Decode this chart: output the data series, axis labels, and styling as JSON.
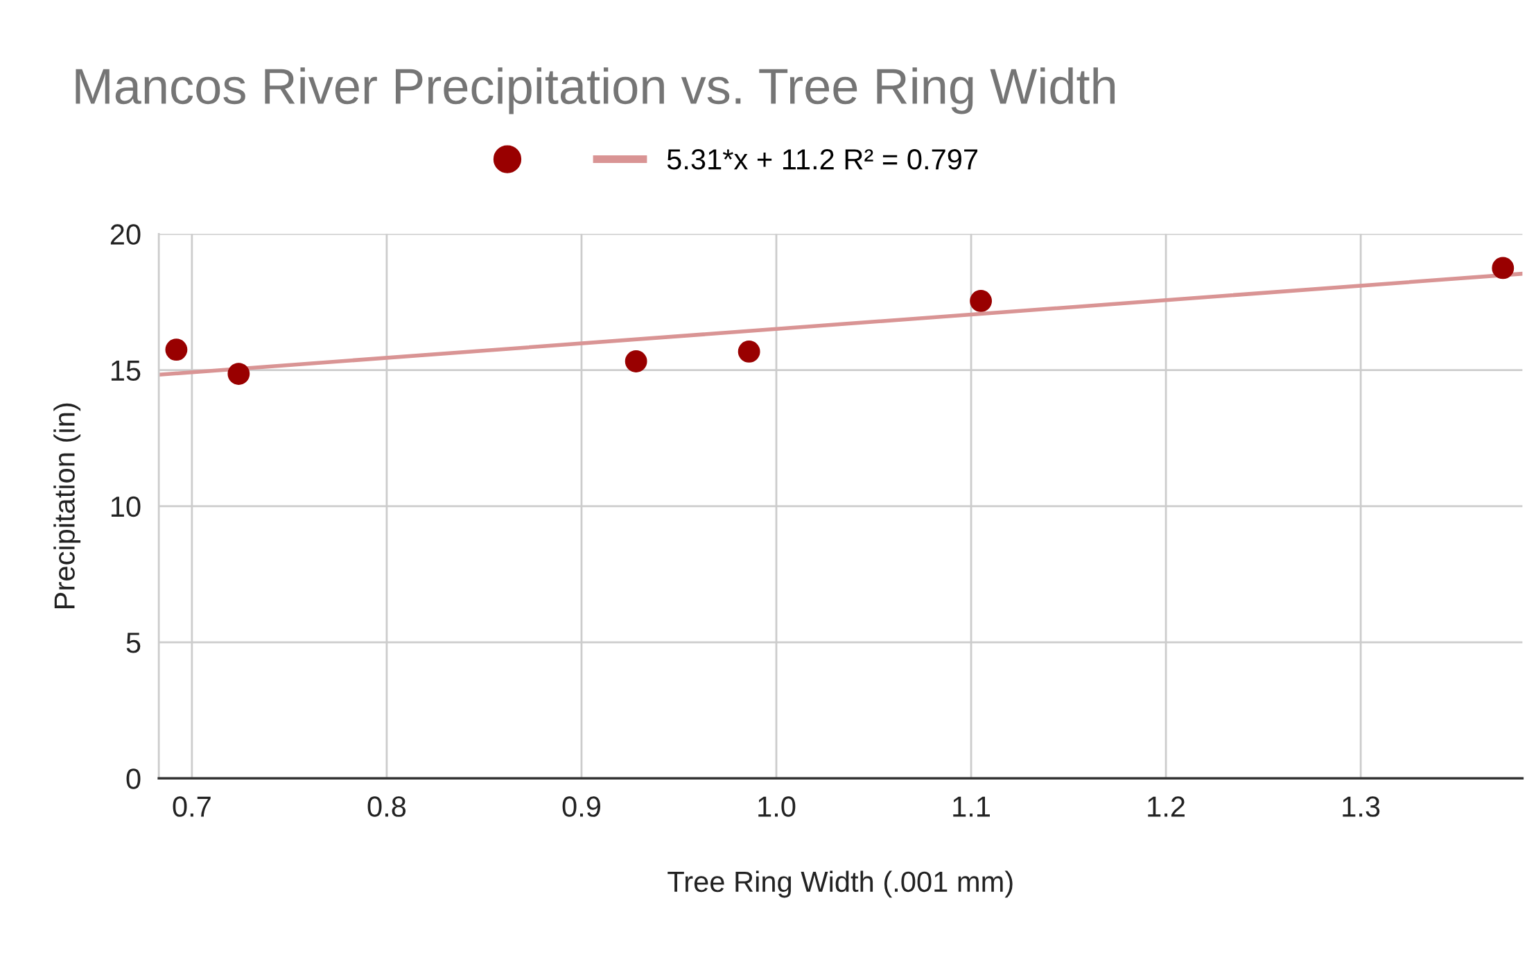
{
  "chart_data": {
    "type": "scatter",
    "title": "Mancos River Precipitation vs. Tree Ring Width",
    "xlabel": "Tree Ring Width (.001 mm)",
    "ylabel": "Precipitation (in)",
    "series": [
      {
        "marker": "circle",
        "color": "#990000",
        "x": [
          0.692,
          0.724,
          0.928,
          0.986,
          1.105,
          1.373
        ],
        "values": [
          15.75,
          14.86,
          15.32,
          15.68,
          17.54,
          18.75
        ]
      },
      {
        "type": "line",
        "name": "5.31*x + 11.2 R² = 0.797",
        "color": "#d99494",
        "x": [
          0.683,
          1.383
        ],
        "values": [
          14.83,
          18.54
        ]
      }
    ],
    "xlim": [
      0.683,
      1.383
    ],
    "ylim": [
      0,
      20
    ],
    "xticks": [
      {
        "value": 0.7,
        "label": "0.7"
      },
      {
        "value": 0.8,
        "label": "0.8"
      },
      {
        "value": 0.9,
        "label": "0.9"
      },
      {
        "value": 1.0,
        "label": "1.0"
      },
      {
        "value": 1.1,
        "label": "1.1"
      },
      {
        "value": 1.2,
        "label": "1.2"
      },
      {
        "value": 1.3,
        "label": "1.3"
      }
    ],
    "yticks": [
      0,
      5,
      10,
      15,
      20
    ],
    "grid": true,
    "legend": "top"
  }
}
